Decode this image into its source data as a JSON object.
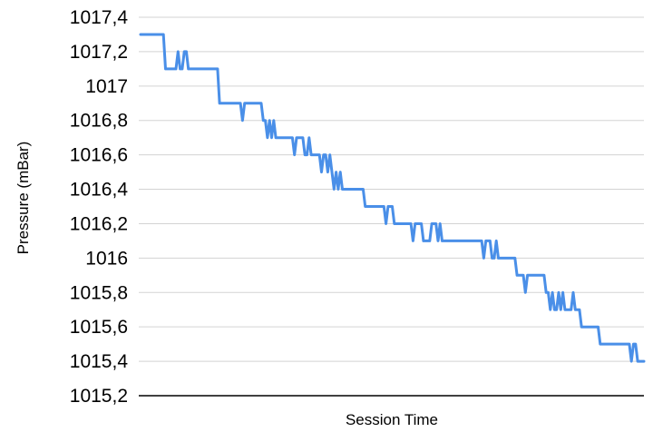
{
  "chart_data": {
    "type": "line",
    "title": "",
    "xlabel": "Session Time",
    "ylabel": "Pressure (mBar)",
    "ylim": [
      1015.2,
      1017.4
    ],
    "grid": true,
    "yticks": [
      1015.2,
      1015.4,
      1015.6,
      1015.8,
      1016.0,
      1016.2,
      1016.4,
      1016.6,
      1016.8,
      1017.0,
      1017.2,
      1017.4
    ],
    "ytick_labels": [
      "1015,2",
      "1015,4",
      "1015,6",
      "1015,8",
      "1016",
      "1016,2",
      "1016,4",
      "1016,6",
      "1016,8",
      "1017",
      "1017,2",
      "1017,4"
    ],
    "line_color": "#4a8fe8",
    "series": [
      {
        "values": [
          1017.3,
          1017.3,
          1017.3,
          1017.3,
          1017.3,
          1017.3,
          1017.3,
          1017.3,
          1017.3,
          1017.3,
          1017.3,
          1017.3,
          1017.1,
          1017.1,
          1017.1,
          1017.1,
          1017.1,
          1017.1,
          1017.2,
          1017.1,
          1017.1,
          1017.2,
          1017.2,
          1017.1,
          1017.1,
          1017.1,
          1017.1,
          1017.1,
          1017.1,
          1017.1,
          1017.1,
          1017.1,
          1017.1,
          1017.1,
          1017.1,
          1017.1,
          1017.1,
          1017.1,
          1016.9,
          1016.9,
          1016.9,
          1016.9,
          1016.9,
          1016.9,
          1016.9,
          1016.9,
          1016.9,
          1016.9,
          1016.9,
          1016.8,
          1016.9,
          1016.9,
          1016.9,
          1016.9,
          1016.9,
          1016.9,
          1016.9,
          1016.9,
          1016.9,
          1016.8,
          1016.8,
          1016.7,
          1016.8,
          1016.7,
          1016.8,
          1016.7,
          1016.7,
          1016.7,
          1016.7,
          1016.7,
          1016.7,
          1016.7,
          1016.7,
          1016.7,
          1016.6,
          1016.7,
          1016.7,
          1016.7,
          1016.7,
          1016.6,
          1016.6,
          1016.7,
          1016.6,
          1016.6,
          1016.6,
          1016.6,
          1016.6,
          1016.5,
          1016.6,
          1016.6,
          1016.5,
          1016.6,
          1016.5,
          1016.4,
          1016.5,
          1016.4,
          1016.5,
          1016.4,
          1016.4,
          1016.4,
          1016.4,
          1016.4,
          1016.4,
          1016.4,
          1016.4,
          1016.4,
          1016.4,
          1016.4,
          1016.3,
          1016.3,
          1016.3,
          1016.3,
          1016.3,
          1016.3,
          1016.3,
          1016.3,
          1016.3,
          1016.3,
          1016.2,
          1016.3,
          1016.3,
          1016.3,
          1016.2,
          1016.2,
          1016.2,
          1016.2,
          1016.2,
          1016.2,
          1016.2,
          1016.2,
          1016.2,
          1016.1,
          1016.2,
          1016.2,
          1016.2,
          1016.2,
          1016.1,
          1016.1,
          1016.1,
          1016.1,
          1016.2,
          1016.2,
          1016.2,
          1016.1,
          1016.2,
          1016.1,
          1016.1,
          1016.1,
          1016.1,
          1016.1,
          1016.1,
          1016.1,
          1016.1,
          1016.1,
          1016.1,
          1016.1,
          1016.1,
          1016.1,
          1016.1,
          1016.1,
          1016.1,
          1016.1,
          1016.1,
          1016.1,
          1016.1,
          1016.0,
          1016.1,
          1016.1,
          1016.1,
          1016.0,
          1016.0,
          1016.1,
          1016.0,
          1016.0,
          1016.0,
          1016.0,
          1016.0,
          1016.0,
          1016.0,
          1016.0,
          1016.0,
          1015.9,
          1015.9,
          1015.9,
          1015.9,
          1015.8,
          1015.9,
          1015.9,
          1015.9,
          1015.9,
          1015.9,
          1015.9,
          1015.9,
          1015.9,
          1015.9,
          1015.8,
          1015.8,
          1015.7,
          1015.8,
          1015.7,
          1015.7,
          1015.8,
          1015.7,
          1015.8,
          1015.7,
          1015.7,
          1015.7,
          1015.7,
          1015.8,
          1015.7,
          1015.7,
          1015.7,
          1015.6,
          1015.6,
          1015.6,
          1015.6,
          1015.6,
          1015.6,
          1015.6,
          1015.6,
          1015.6,
          1015.5,
          1015.5,
          1015.5,
          1015.5,
          1015.5,
          1015.5,
          1015.5,
          1015.5,
          1015.5,
          1015.5,
          1015.5,
          1015.5,
          1015.5,
          1015.5,
          1015.5,
          1015.4,
          1015.5,
          1015.5,
          1015.4,
          1015.4,
          1015.4,
          1015.4
        ]
      }
    ]
  }
}
